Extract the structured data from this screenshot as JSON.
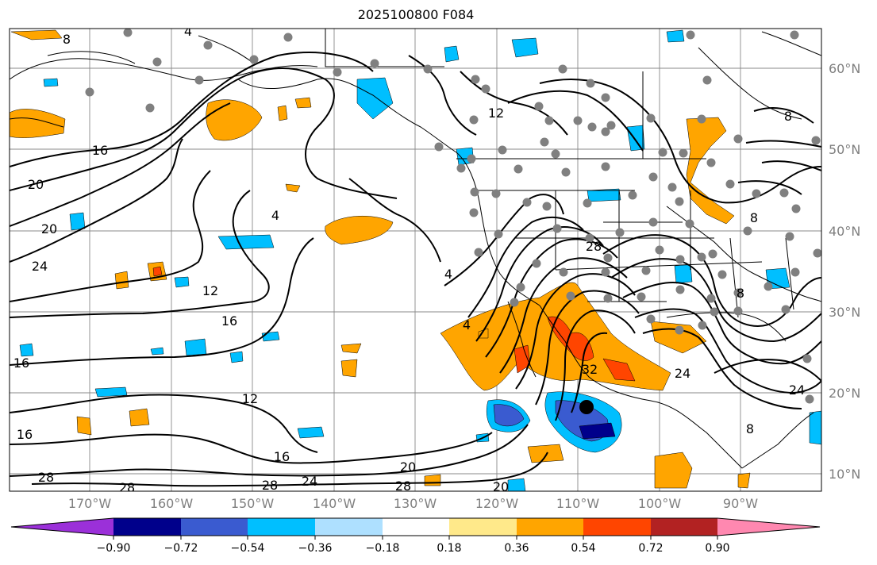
{
  "title": "2025100800 F084",
  "latitude_labels": [
    "60°N",
    "50°N",
    "40°N",
    "30°N",
    "20°N",
    "10°N"
  ],
  "longitude_labels": [
    "170°W",
    "160°W",
    "150°W",
    "140°W",
    "130°W",
    "120°W",
    "110°W",
    "100°W",
    "90°W"
  ],
  "contour_labels": [
    "8",
    "4",
    "8",
    "12",
    "16",
    "20",
    "20",
    "24",
    "4",
    "12",
    "16",
    "12",
    "16",
    "16",
    "16",
    "28",
    "28",
    "28",
    "24",
    "20",
    "28",
    "20",
    "4",
    "4",
    "28",
    "32",
    "24",
    "24",
    "8",
    "8",
    "8"
  ],
  "colorbar": {
    "ticks": [
      "−0.90",
      "−0.72",
      "−0.54",
      "−0.36",
      "−0.18",
      "0.18",
      "0.36",
      "0.54",
      "0.72",
      "0.90"
    ],
    "colors": [
      "#9b30d9",
      "#00008b",
      "#3a5bd0",
      "#00bfff",
      "#aee0ff",
      "#ffffff",
      "#ffe98a",
      "#ffa500",
      "#ff4500",
      "#b22222",
      "#ff88b0"
    ]
  },
  "colors": {
    "land_outline": "#000000",
    "contour": "#000000",
    "gridline": "#888888",
    "station_dot": "#808080",
    "positive_shading": "#ffa500",
    "strong_positive_shading": "#ff4500",
    "negative_shading": "#00bfff",
    "strong_negative_shading": "#3a5bd0"
  },
  "markers": [
    {
      "name": "storm-center",
      "shape": "filled-circle",
      "color": "#000000"
    }
  ]
}
